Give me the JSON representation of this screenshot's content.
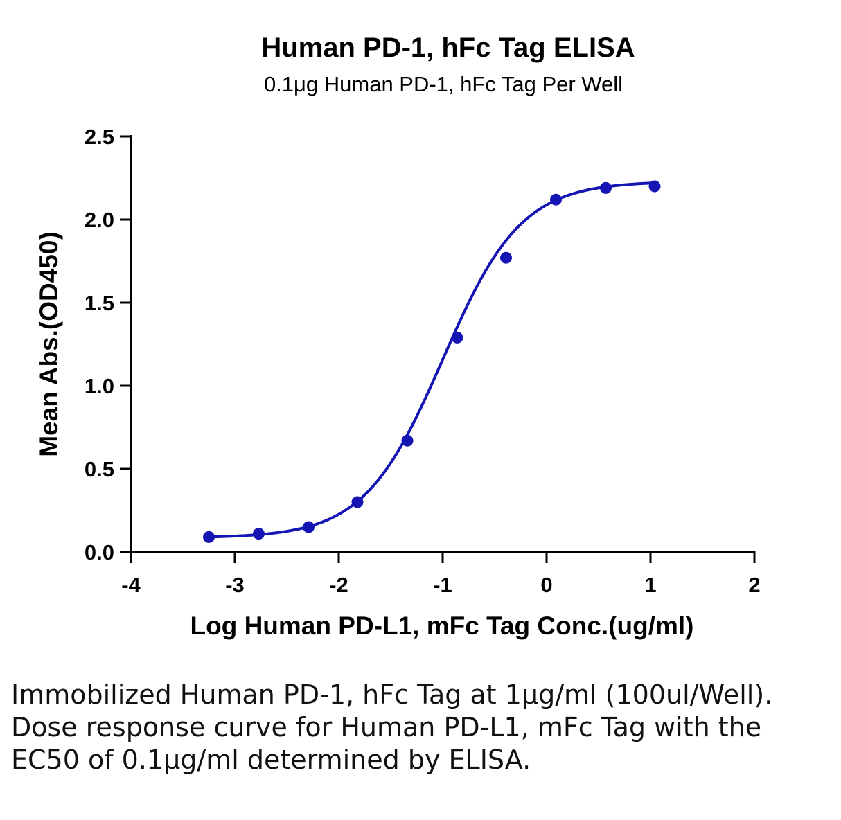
{
  "chart_data": {
    "type": "scatter",
    "title": "Human PD-1, hFc Tag ELISA",
    "subtitle": "0.1μg Human PD-1, hFc Tag Per Well",
    "xlabel": "Log Human PD-L1, mFc Tag Conc.(ug/ml)",
    "ylabel": "Mean Abs.(OD450)",
    "xlim": [
      -4,
      2
    ],
    "ylim": [
      0,
      2.5
    ],
    "x_ticks": [
      -4,
      -3,
      -2,
      -1,
      0,
      1,
      2
    ],
    "x_tick_labels": [
      "-4",
      "-3",
      "-2",
      "-1",
      "0",
      "1",
      "2"
    ],
    "y_ticks": [
      0,
      0.5,
      1.0,
      1.5,
      2.0,
      2.5
    ],
    "y_tick_labels": [
      "0.0",
      "0.5",
      "1.0",
      "1.5",
      "2.0",
      "2.5"
    ],
    "series": [
      {
        "color": "#1515b4",
        "x": [
          -3.25,
          -2.77,
          -2.29,
          -1.82,
          -1.34,
          -0.86,
          -0.39,
          0.09,
          0.57,
          1.04
        ],
        "y": [
          0.09,
          0.11,
          0.15,
          0.3,
          0.67,
          1.29,
          1.77,
          2.12,
          2.19,
          2.2
        ],
        "fit": {
          "model": "4PL",
          "bottom": 0.085,
          "top": 2.23,
          "log_ec50": -1.0,
          "hill": 1.15,
          "x_range": [
            -3.25,
            1.04
          ]
        }
      }
    ],
    "grid": false,
    "legend": "none"
  },
  "caption": "Immobilized Human PD-1, hFc Tag at 1μg/ml (100ul/Well). Dose response curve for Human PD-L1, mFc Tag with the EC50 of 0.1μg/ml determined by ELISA."
}
